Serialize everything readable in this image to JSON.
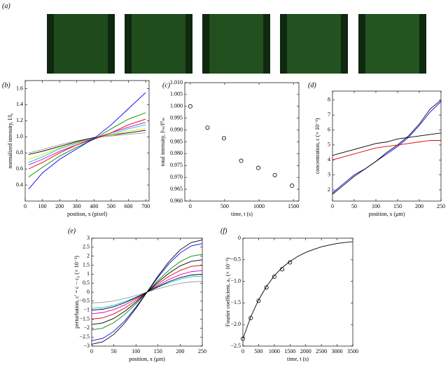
{
  "images_panel": {
    "label": "(a)"
  },
  "chart_data": [
    {
      "type": "line",
      "panel_label": "(b)",
      "xlabel": "position, x (pixel)",
      "ylabel": "normalized intensity, I/I₀",
      "x": [
        20,
        100,
        200,
        300,
        400,
        500,
        600,
        700
      ],
      "xlim": [
        0,
        720
      ],
      "xticks": [
        0,
        100,
        200,
        300,
        400,
        500,
        600,
        700
      ],
      "ylim": [
        0.2,
        1.7
      ],
      "yticks": [
        0.4,
        0.6,
        0.8,
        {
          "value": 1.0,
          "label": "1.0"
        },
        1.2,
        1.4,
        1.6
      ],
      "series": [
        {
          "color": "#9a9a9a",
          "values": [
            0.8,
            0.84,
            0.9,
            0.95,
            0.99,
            1.01,
            1.03,
            1.05
          ]
        },
        {
          "color": "#000000",
          "values": [
            0.78,
            0.82,
            0.88,
            0.94,
            0.99,
            1.02,
            1.05,
            1.08
          ]
        },
        {
          "color": "#e8d800",
          "values": [
            0.72,
            0.78,
            0.86,
            0.93,
            0.98,
            1.02,
            1.07,
            1.1
          ]
        },
        {
          "color": "#00c8d8",
          "values": [
            0.68,
            0.75,
            0.85,
            0.92,
            0.98,
            1.03,
            1.1,
            1.15
          ]
        },
        {
          "color": "#d000d0",
          "values": [
            0.65,
            0.72,
            0.82,
            0.9,
            0.98,
            1.05,
            1.12,
            1.18
          ]
        },
        {
          "color": "#e00000",
          "values": [
            0.6,
            0.68,
            0.8,
            0.9,
            0.97,
            1.05,
            1.15,
            1.22
          ]
        },
        {
          "color": "#008a00",
          "values": [
            0.5,
            0.62,
            0.76,
            0.87,
            0.97,
            1.1,
            1.22,
            1.3
          ]
        },
        {
          "color": "#0000ff",
          "values": [
            0.35,
            0.55,
            0.72,
            0.85,
            0.98,
            1.15,
            1.35,
            1.55
          ]
        }
      ]
    },
    {
      "type": "scatter",
      "panel_label": "(c)",
      "xlabel": "time, t (s)",
      "ylabel": "total intensity, Iᵗₘ/I⁰ₘ",
      "x": [
        0,
        250,
        490,
        740,
        990,
        1230,
        1480
      ],
      "xlim": [
        -80,
        1580
      ],
      "xticks": [
        0,
        500,
        1000,
        1500
      ],
      "ylim": [
        0.96,
        1.01
      ],
      "yticks": [
        {
          "value": 0.96,
          "label": "0.960"
        },
        0.965,
        {
          "value": 0.97,
          "label": "0.970"
        },
        0.975,
        {
          "value": 0.98,
          "label": "0.980"
        },
        0.985,
        {
          "value": 0.99,
          "label": "0.990"
        },
        0.995,
        {
          "value": 1.0,
          "label": "1.000"
        },
        1.005,
        {
          "value": 1.01,
          "label": "1.010"
        }
      ],
      "series": [
        {
          "color": "#000000",
          "values": [
            1.0,
            0.991,
            0.9865,
            0.977,
            0.974,
            0.971,
            0.9665
          ]
        }
      ]
    },
    {
      "type": "line",
      "panel_label": "(d)",
      "xlabel": "position, x (μm)",
      "ylabel": "concentration, c (× 10⁻³)",
      "x": [
        0,
        25,
        50,
        75,
        100,
        125,
        150,
        175,
        200,
        225,
        250
      ],
      "xlim": [
        0,
        250
      ],
      "xticks": [
        0,
        50,
        100,
        150,
        200,
        250
      ],
      "ylim": [
        1.25,
        8.6
      ],
      "yticks": [
        2,
        3,
        4,
        5,
        6,
        7,
        8
      ],
      "series": [
        {
          "color": "#0000ff",
          "values": [
            1.8,
            2.4,
            3.0,
            3.4,
            3.9,
            4.4,
            4.9,
            5.5,
            6.3,
            7.2,
            7.9
          ]
        },
        {
          "color": "#000000",
          "values": [
            1.7,
            2.3,
            2.9,
            3.4,
            3.9,
            4.5,
            5.0,
            5.6,
            6.4,
            7.4,
            8.0
          ]
        },
        {
          "color": "#e00000",
          "values": [
            4.0,
            4.2,
            4.4,
            4.6,
            4.8,
            4.9,
            5.0,
            5.1,
            5.2,
            5.3,
            5.3
          ]
        },
        {
          "color": "#000000",
          "values": [
            4.3,
            4.5,
            4.7,
            4.9,
            5.1,
            5.2,
            5.4,
            5.5,
            5.6,
            5.7,
            5.8
          ]
        }
      ]
    },
    {
      "type": "line",
      "panel_label": "(e)",
      "xlabel": "position, x (μm)",
      "ylabel": "perturbation, c′ = c − c₀ (× 10⁻³)",
      "x": [
        0,
        25,
        50,
        75,
        100,
        125,
        150,
        175,
        200,
        225,
        250
      ],
      "xlim": [
        0,
        250
      ],
      "xticks": [
        0,
        50,
        100,
        150,
        200,
        250
      ],
      "ylim": [
        -3,
        3
      ],
      "yticks": [
        {
          "value": -3,
          "label": "−3"
        },
        {
          "value": -2.5,
          "label": "−2.5"
        },
        {
          "value": -2,
          "label": "−2"
        },
        {
          "value": -1.5,
          "label": "−1.5"
        },
        {
          "value": -1,
          "label": "−1"
        },
        {
          "value": -0.5,
          "label": "−0.5"
        },
        0,
        0.5,
        1,
        1.5,
        2,
        2.5,
        3
      ],
      "series": [
        {
          "color": "#0000ff",
          "values": [
            -2.7,
            -2.57,
            -2.18,
            -1.59,
            -0.83,
            0,
            0.83,
            1.59,
            2.18,
            2.57,
            2.7
          ]
        },
        {
          "color": "#008a00",
          "values": [
            -2.1,
            -2.0,
            -1.7,
            -1.23,
            -0.65,
            0,
            0.65,
            1.23,
            1.7,
            2.0,
            2.1
          ]
        },
        {
          "color": "#e00000",
          "values": [
            -1.5,
            -1.43,
            -1.21,
            -0.88,
            -0.46,
            0,
            0.46,
            0.88,
            1.21,
            1.43,
            1.5
          ]
        },
        {
          "color": "#d000d0",
          "values": [
            -1.2,
            -1.14,
            -0.97,
            -0.71,
            -0.37,
            0,
            0.37,
            0.71,
            0.97,
            1.14,
            1.2
          ]
        },
        {
          "color": "#00c8d8",
          "values": [
            -0.9,
            -0.86,
            -0.73,
            -0.53,
            -0.28,
            0,
            0.28,
            0.53,
            0.73,
            0.86,
            0.9
          ]
        },
        {
          "color": "#9a9a9a",
          "values": [
            -0.6,
            -0.57,
            -0.49,
            -0.35,
            -0.19,
            0,
            0.19,
            0.35,
            0.49,
            0.57,
            0.6
          ]
        },
        {
          "color": "#000000",
          "values": [
            -2.9,
            -2.76,
            -2.35,
            -1.71,
            -0.9,
            0,
            0.9,
            1.71,
            2.35,
            2.76,
            2.9
          ]
        },
        {
          "color": "#000000",
          "values": [
            -1.8,
            -1.71,
            -1.46,
            -1.06,
            -0.56,
            0,
            0.56,
            1.06,
            1.46,
            1.71,
            1.8
          ]
        },
        {
          "color": "#000000",
          "values": [
            -1.0,
            -0.95,
            -0.81,
            -0.59,
            -0.31,
            0,
            0.31,
            0.59,
            0.81,
            0.95,
            1.0
          ]
        }
      ]
    },
    {
      "type": "line",
      "panel_label": "(f)",
      "xlabel": "time, t (s)",
      "ylabel": "Fourier coefficient, a₁ (× 10⁻³)",
      "xlim": [
        0,
        3500
      ],
      "xticks": [
        0,
        500,
        1000,
        1500,
        2000,
        2500,
        3000,
        3500
      ],
      "ylim": [
        -2.5,
        0
      ],
      "yticks": [
        {
          "value": -2.5,
          "label": "−2.5"
        },
        {
          "value": -2.0,
          "label": "−2.0"
        },
        {
          "value": -1.5,
          "label": "−1.5"
        },
        {
          "value": -1.0,
          "label": "−1.0"
        },
        {
          "value": -0.5,
          "label": "−0.5"
        },
        0
      ],
      "series": [
        {
          "type": "scatter",
          "color": "#000000",
          "x": [
            0,
            250,
            500,
            750,
            1000,
            1250,
            1500
          ],
          "values": [
            -2.33,
            -1.85,
            -1.45,
            -1.14,
            -0.89,
            -0.72,
            -0.56
          ]
        },
        {
          "type": "line",
          "color": "#000000",
          "x": [
            0,
            250,
            500,
            750,
            1000,
            1250,
            1500,
            1750,
            2000,
            2250,
            2500,
            2750,
            3000,
            3250,
            3500
          ],
          "values": [
            -2.33,
            -1.82,
            -1.43,
            -1.12,
            -0.87,
            -0.68,
            -0.54,
            -0.42,
            -0.33,
            -0.26,
            -0.2,
            -0.16,
            -0.12,
            -0.1,
            -0.08
          ]
        }
      ]
    }
  ]
}
